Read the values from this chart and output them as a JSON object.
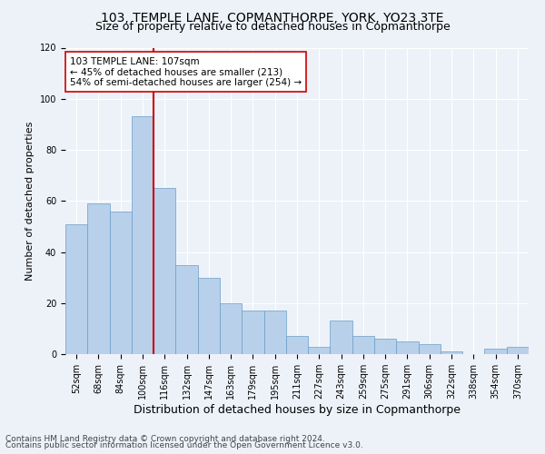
{
  "title1": "103, TEMPLE LANE, COPMANTHORPE, YORK, YO23 3TE",
  "title2": "Size of property relative to detached houses in Copmanthorpe",
  "xlabel": "Distribution of detached houses by size in Copmanthorpe",
  "ylabel": "Number of detached properties",
  "footer1": "Contains HM Land Registry data © Crown copyright and database right 2024.",
  "footer2": "Contains public sector information licensed under the Open Government Licence v3.0.",
  "annotation_line1": "103 TEMPLE LANE: 107sqm",
  "annotation_line2": "← 45% of detached houses are smaller (213)",
  "annotation_line3": "54% of semi-detached houses are larger (254) →",
  "bar_categories": [
    "52sqm",
    "68sqm",
    "84sqm",
    "100sqm",
    "116sqm",
    "132sqm",
    "147sqm",
    "163sqm",
    "179sqm",
    "195sqm",
    "211sqm",
    "227sqm",
    "243sqm",
    "259sqm",
    "275sqm",
    "291sqm",
    "306sqm",
    "322sqm",
    "338sqm",
    "354sqm",
    "370sqm"
  ],
  "bar_values": [
    51,
    59,
    56,
    93,
    65,
    35,
    30,
    20,
    17,
    17,
    7,
    3,
    13,
    7,
    6,
    5,
    4,
    1,
    0,
    2,
    3
  ],
  "bar_color": "#b8d0ea",
  "bar_edgecolor": "#6a9dc8",
  "vline_color": "#cc0000",
  "vline_x_index": 3.5,
  "ylim": [
    0,
    120
  ],
  "yticks": [
    0,
    20,
    40,
    60,
    80,
    100,
    120
  ],
  "background_color": "#edf2f9",
  "plot_background": "#edf2f9",
  "annotation_box_facecolor": "#ffffff",
  "annotation_box_edgecolor": "#cc0000",
  "grid_color": "#ffffff",
  "title1_fontsize": 10,
  "title2_fontsize": 9,
  "xlabel_fontsize": 9,
  "ylabel_fontsize": 8,
  "tick_fontsize": 7,
  "annotation_fontsize": 7.5,
  "footer_fontsize": 6.5
}
